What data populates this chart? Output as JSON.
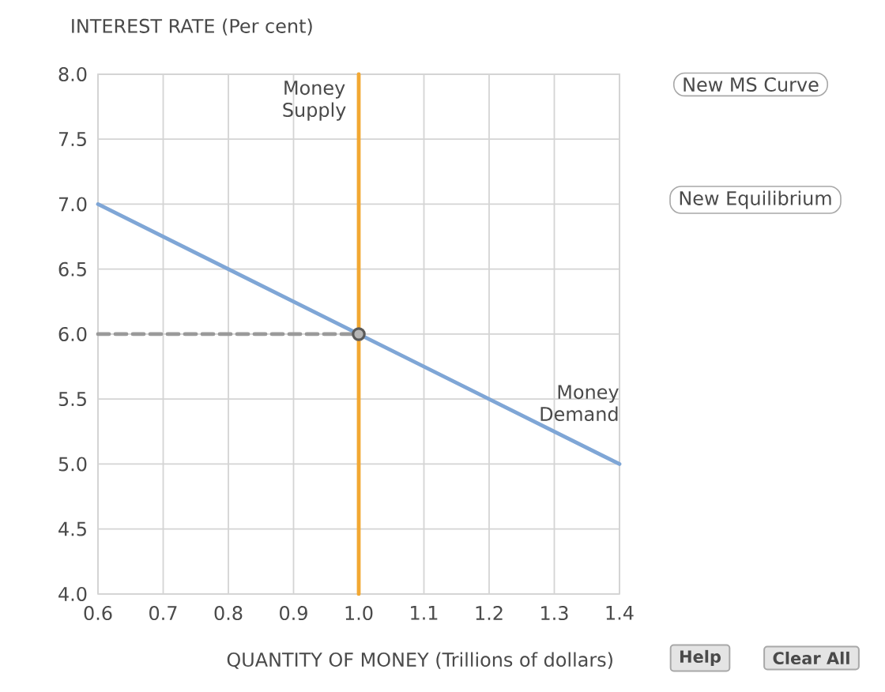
{
  "chart_data": {
    "type": "line",
    "xlabel": "QUANTITY OF MONEY (Trillions of dollars)",
    "ylabel": "INTEREST RATE (Per cent)",
    "xlim": [
      0.6,
      1.4
    ],
    "xticks": [
      0.6,
      0.7,
      0.8,
      0.9,
      {
        "value": 1.0,
        "label": "1.0"
      },
      1.1,
      1.2,
      1.3,
      1.4
    ],
    "ylim": [
      4.0,
      8.0
    ],
    "yticks": [
      {
        "value": 4.0,
        "label": "4.0"
      },
      4.5,
      {
        "value": 5.0,
        "label": "5.0"
      },
      5.5,
      {
        "value": 6.0,
        "label": "6.0"
      },
      6.5,
      {
        "value": 7.0,
        "label": "7.0"
      },
      7.5,
      {
        "value": 8.0,
        "label": "8.0"
      }
    ],
    "grid": true,
    "series": [
      {
        "color": "#9a9a9a",
        "line_style": "dashed",
        "x": [
          0.6,
          1.0
        ],
        "values": [
          6.0,
          6.0
        ]
      },
      {
        "name": "Money Demand",
        "color": "#7fa6d6",
        "x": [
          0.6,
          1.4
        ],
        "values": [
          7.0,
          5.0
        ]
      },
      {
        "name": "Money Supply",
        "color": "#f2a833",
        "x": [
          1.0,
          1.0
        ],
        "values": [
          4.0,
          8.0
        ]
      },
      {
        "type": "scatter",
        "color": "#5a5a5a",
        "marker": "circle",
        "x": [
          1.0
        ],
        "values": [
          6.0
        ]
      }
    ],
    "annotations": [
      "New MS Curve",
      "New Equilibrium",
      "Help",
      "Clear All"
    ]
  }
}
